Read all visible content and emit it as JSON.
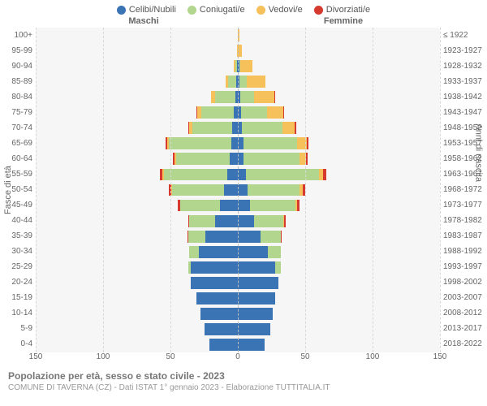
{
  "chart": {
    "type": "population-pyramid",
    "legend": [
      {
        "label": "Celibi/Nubili",
        "color": "#3b74b5"
      },
      {
        "label": "Coniugati/e",
        "color": "#b3d68e"
      },
      {
        "label": "Vedovi/e",
        "color": "#f6c15a"
      },
      {
        "label": "Divorziati/e",
        "color": "#d63a2f"
      }
    ],
    "header_maschi": "Maschi",
    "header_femmine": "Femmine",
    "y_label_left": "Fasce di età",
    "y_label_right": "Anni di nascita",
    "background_color": "#f6f6f6",
    "grid_color": "#d8d8d8",
    "x_ticks": [
      -150,
      -100,
      -50,
      0,
      50,
      100,
      150
    ],
    "x_max": 150,
    "age_labels": [
      "100+",
      "95-99",
      "90-94",
      "85-89",
      "80-84",
      "75-79",
      "70-74",
      "65-69",
      "60-64",
      "55-59",
      "50-54",
      "45-49",
      "40-44",
      "35-39",
      "30-34",
      "25-29",
      "20-24",
      "15-19",
      "10-14",
      "5-9",
      "0-4"
    ],
    "birth_labels": [
      "≤ 1922",
      "1923-1927",
      "1928-1932",
      "1933-1937",
      "1938-1942",
      "1943-1947",
      "1948-1952",
      "1953-1957",
      "1958-1962",
      "1963-1967",
      "1968-1972",
      "1973-1977",
      "1978-1982",
      "1983-1987",
      "1988-1992",
      "1993-1997",
      "1998-2002",
      "2003-2007",
      "2008-2012",
      "2013-2017",
      "2018-2022"
    ],
    "rows": [
      {
        "m": {
          "cel": 0,
          "con": 0,
          "ved": 0,
          "div": 0
        },
        "f": {
          "cel": 0,
          "con": 0,
          "ved": 2,
          "div": 0
        }
      },
      {
        "m": {
          "cel": 0,
          "con": 0,
          "ved": 1,
          "div": 0
        },
        "f": {
          "cel": 0,
          "con": 0,
          "ved": 6,
          "div": 0
        }
      },
      {
        "m": {
          "cel": 1,
          "con": 3,
          "ved": 2,
          "div": 0
        },
        "f": {
          "cel": 2,
          "con": 2,
          "ved": 18,
          "div": 0
        }
      },
      {
        "m": {
          "cel": 2,
          "con": 12,
          "ved": 4,
          "div": 0
        },
        "f": {
          "cel": 3,
          "con": 10,
          "ved": 28,
          "div": 0
        }
      },
      {
        "m": {
          "cel": 4,
          "con": 30,
          "ved": 6,
          "div": 0
        },
        "f": {
          "cel": 4,
          "con": 20,
          "ved": 30,
          "div": 2
        }
      },
      {
        "m": {
          "cel": 6,
          "con": 48,
          "ved": 6,
          "div": 1
        },
        "f": {
          "cel": 5,
          "con": 38,
          "ved": 24,
          "div": 2
        }
      },
      {
        "m": {
          "cel": 8,
          "con": 60,
          "ved": 4,
          "div": 2
        },
        "f": {
          "cel": 6,
          "con": 60,
          "ved": 18,
          "div": 3
        }
      },
      {
        "m": {
          "cel": 10,
          "con": 92,
          "ved": 3,
          "div": 2
        },
        "f": {
          "cel": 8,
          "con": 80,
          "ved": 14,
          "div": 3
        }
      },
      {
        "m": {
          "cel": 12,
          "con": 80,
          "ved": 2,
          "div": 3
        },
        "f": {
          "cel": 9,
          "con": 82,
          "ved": 10,
          "div": 3
        }
      },
      {
        "m": {
          "cel": 16,
          "con": 94,
          "ved": 2,
          "div": 4
        },
        "f": {
          "cel": 12,
          "con": 108,
          "ved": 6,
          "div": 5
        }
      },
      {
        "m": {
          "cel": 20,
          "con": 78,
          "ved": 1,
          "div": 3
        },
        "f": {
          "cel": 14,
          "con": 78,
          "ved": 4,
          "div": 4
        }
      },
      {
        "m": {
          "cel": 26,
          "con": 60,
          "ved": 0,
          "div": 3
        },
        "f": {
          "cel": 18,
          "con": 68,
          "ved": 2,
          "div": 4
        }
      },
      {
        "m": {
          "cel": 34,
          "con": 38,
          "ved": 0,
          "div": 2
        },
        "f": {
          "cel": 24,
          "con": 44,
          "ved": 1,
          "div": 2
        }
      },
      {
        "m": {
          "cel": 48,
          "con": 26,
          "ved": 0,
          "div": 1
        },
        "f": {
          "cel": 34,
          "con": 30,
          "ved": 0,
          "div": 1
        }
      },
      {
        "m": {
          "cel": 58,
          "con": 14,
          "ved": 0,
          "div": 0
        },
        "f": {
          "cel": 44,
          "con": 20,
          "ved": 0,
          "div": 0
        }
      },
      {
        "m": {
          "cel": 70,
          "con": 4,
          "ved": 0,
          "div": 0
        },
        "f": {
          "cel": 56,
          "con": 8,
          "ved": 0,
          "div": 0
        }
      },
      {
        "m": {
          "cel": 70,
          "con": 0,
          "ved": 0,
          "div": 0
        },
        "f": {
          "cel": 60,
          "con": 0,
          "ved": 0,
          "div": 0
        }
      },
      {
        "m": {
          "cel": 62,
          "con": 0,
          "ved": 0,
          "div": 0
        },
        "f": {
          "cel": 56,
          "con": 0,
          "ved": 0,
          "div": 0
        }
      },
      {
        "m": {
          "cel": 56,
          "con": 0,
          "ved": 0,
          "div": 0
        },
        "f": {
          "cel": 52,
          "con": 0,
          "ved": 0,
          "div": 0
        }
      },
      {
        "m": {
          "cel": 50,
          "con": 0,
          "ved": 0,
          "div": 0
        },
        "f": {
          "cel": 48,
          "con": 0,
          "ved": 0,
          "div": 0
        }
      },
      {
        "m": {
          "cel": 42,
          "con": 0,
          "ved": 0,
          "div": 0
        },
        "f": {
          "cel": 40,
          "con": 0,
          "ved": 0,
          "div": 0
        }
      }
    ]
  },
  "footer": {
    "title": "Popolazione per età, sesso e stato civile - 2023",
    "subtitle": "COMUNE DI TAVERNA (CZ) - Dati ISTAT 1° gennaio 2023 - Elaborazione TUTTITALIA.IT"
  }
}
